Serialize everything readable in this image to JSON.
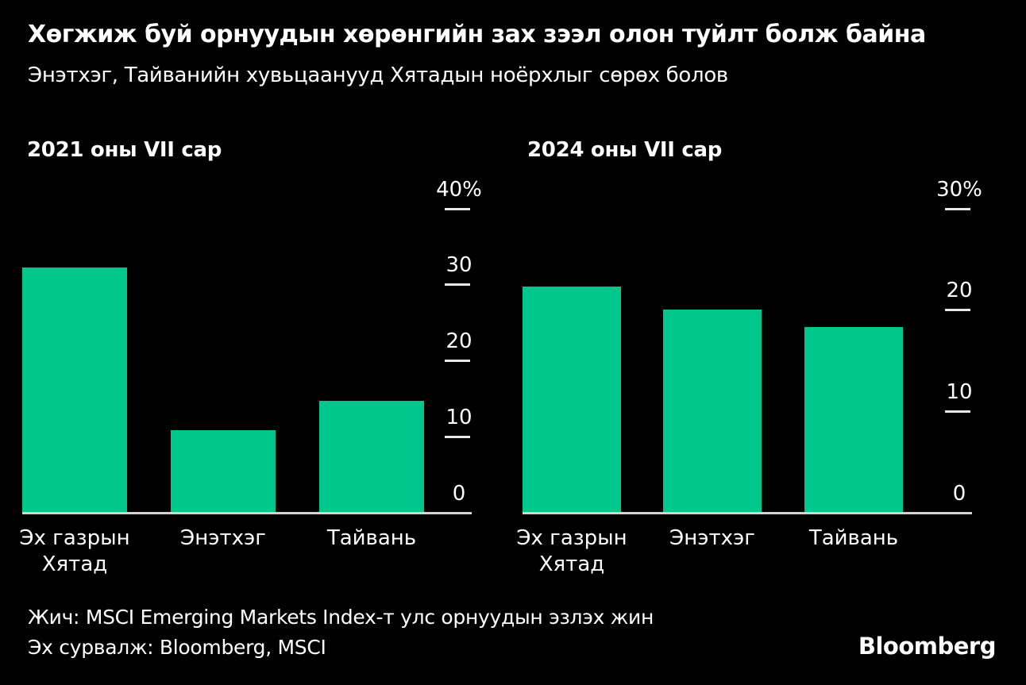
{
  "header": {
    "title": "Хөгжиж буй орнуудын хөрөнгийн зах зээл олон туйлт болж байна",
    "subtitle": "Энэтхэг, Тайванийн хувьцаанууд Хятадын ноёрхлыг сөрөх болов"
  },
  "colors": {
    "background": "#000000",
    "bar": "#00C78B",
    "axis_line": "#D6D2CE",
    "tick_dash": "#E8E8E8",
    "text": "#FFFFFF"
  },
  "chart_data": [
    {
      "type": "bar",
      "title": "2021 оны VII сар",
      "categories": [
        "Эх газрын\nХятад",
        "Энэтхэг",
        "Тайвань"
      ],
      "values": [
        32.2,
        10.8,
        14.7
      ],
      "unit": "%",
      "xlabel": "",
      "ylabel": "",
      "ylim": [
        0,
        40
      ],
      "yticks": [
        {
          "label": "40%",
          "value": 40
        },
        {
          "label": "30",
          "value": 30
        },
        {
          "label": "20",
          "value": 20
        },
        {
          "label": "10",
          "value": 10
        },
        {
          "label": "0",
          "value": 0
        }
      ],
      "grid": false,
      "legend": false,
      "axis_side": "right"
    },
    {
      "type": "bar",
      "title": "2024 оны VII сар",
      "categories": [
        "Эх газрын\nХятад",
        "Энэтхэг",
        "Тайвань"
      ],
      "values": [
        22.3,
        20.0,
        18.3
      ],
      "unit": "%",
      "xlabel": "",
      "ylabel": "",
      "ylim": [
        0,
        30
      ],
      "yticks": [
        {
          "label": "30%",
          "value": 30
        },
        {
          "label": "20",
          "value": 20
        },
        {
          "label": "10",
          "value": 10
        },
        {
          "label": "0",
          "value": 0
        }
      ],
      "grid": false,
      "legend": false,
      "axis_side": "right"
    }
  ],
  "footer": {
    "note": "Жич: MSCI Emerging Markets Index-т улс орнуудын эзлэх жин",
    "source": "Эх сурвалж: Bloomberg, MSCI",
    "brand": "Bloomberg"
  }
}
